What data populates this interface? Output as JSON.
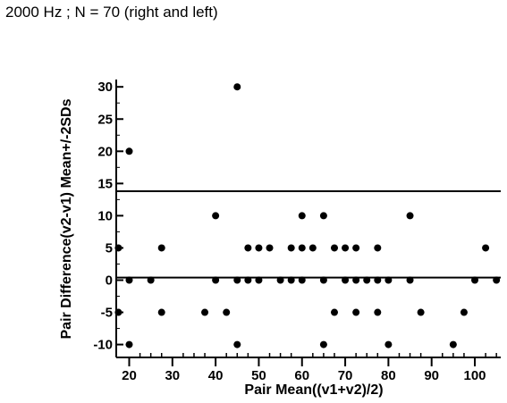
{
  "title": "2000 Hz ; N = 70 (right and left)",
  "chart_data": {
    "type": "scatter",
    "title": "2000 Hz ; N = 70 (right and left)",
    "xlabel": "Pair Mean((v1+v2)/2)",
    "ylabel": "Pair Difference(v2-v1) Mean+/-2SDs",
    "xlim": [
      17,
      106
    ],
    "ylim": [
      -12,
      31
    ],
    "xticks": [
      20,
      30,
      40,
      50,
      60,
      70,
      80,
      90,
      100
    ],
    "yticks": [
      -10,
      -5,
      0,
      5,
      10,
      15,
      20,
      25,
      30
    ],
    "xtick_labels": [
      "20",
      "30",
      "40",
      "50",
      "60",
      "70",
      "80",
      "90",
      "100"
    ],
    "ytick_labels": [
      "-10",
      "-5",
      "0",
      "5",
      "10",
      "15",
      "20",
      "25",
      "30"
    ],
    "grid": false,
    "legend": "none",
    "reference_lines": [
      {
        "y": 13.8
      },
      {
        "y": 0.4
      }
    ],
    "points": [
      {
        "x": 17.5,
        "y": 5
      },
      {
        "x": 17.5,
        "y": -5
      },
      {
        "x": 20,
        "y": 20
      },
      {
        "x": 20,
        "y": 0
      },
      {
        "x": 20,
        "y": -10
      },
      {
        "x": 25,
        "y": 0
      },
      {
        "x": 27.5,
        "y": 5
      },
      {
        "x": 27.5,
        "y": -5
      },
      {
        "x": 37.5,
        "y": -5
      },
      {
        "x": 40,
        "y": 10
      },
      {
        "x": 40,
        "y": 0
      },
      {
        "x": 42.5,
        "y": -5
      },
      {
        "x": 45,
        "y": 30
      },
      {
        "x": 45,
        "y": 0
      },
      {
        "x": 45,
        "y": -10
      },
      {
        "x": 47.5,
        "y": 5
      },
      {
        "x": 47.5,
        "y": 0
      },
      {
        "x": 50,
        "y": 5
      },
      {
        "x": 50,
        "y": 0
      },
      {
        "x": 52.5,
        "y": 5
      },
      {
        "x": 55,
        "y": 0
      },
      {
        "x": 57.5,
        "y": 5
      },
      {
        "x": 57.5,
        "y": 0
      },
      {
        "x": 60,
        "y": 10
      },
      {
        "x": 60,
        "y": 5
      },
      {
        "x": 60,
        "y": 0
      },
      {
        "x": 62.5,
        "y": 5
      },
      {
        "x": 65,
        "y": 10
      },
      {
        "x": 65,
        "y": 0
      },
      {
        "x": 65,
        "y": -10
      },
      {
        "x": 67.5,
        "y": 5
      },
      {
        "x": 67.5,
        "y": -5
      },
      {
        "x": 70,
        "y": 5
      },
      {
        "x": 70,
        "y": 0
      },
      {
        "x": 72.5,
        "y": 0
      },
      {
        "x": 72.5,
        "y": 5
      },
      {
        "x": 72.5,
        "y": -5
      },
      {
        "x": 75,
        "y": 0
      },
      {
        "x": 77.5,
        "y": 5
      },
      {
        "x": 77.5,
        "y": 0
      },
      {
        "x": 77.5,
        "y": -5
      },
      {
        "x": 80,
        "y": 0
      },
      {
        "x": 80,
        "y": -10
      },
      {
        "x": 85,
        "y": 10
      },
      {
        "x": 85,
        "y": 0
      },
      {
        "x": 87.5,
        "y": -5
      },
      {
        "x": 95,
        "y": -10
      },
      {
        "x": 97.5,
        "y": -5
      },
      {
        "x": 100,
        "y": 0
      },
      {
        "x": 102.5,
        "y": 5
      },
      {
        "x": 105,
        "y": 0
      }
    ]
  }
}
